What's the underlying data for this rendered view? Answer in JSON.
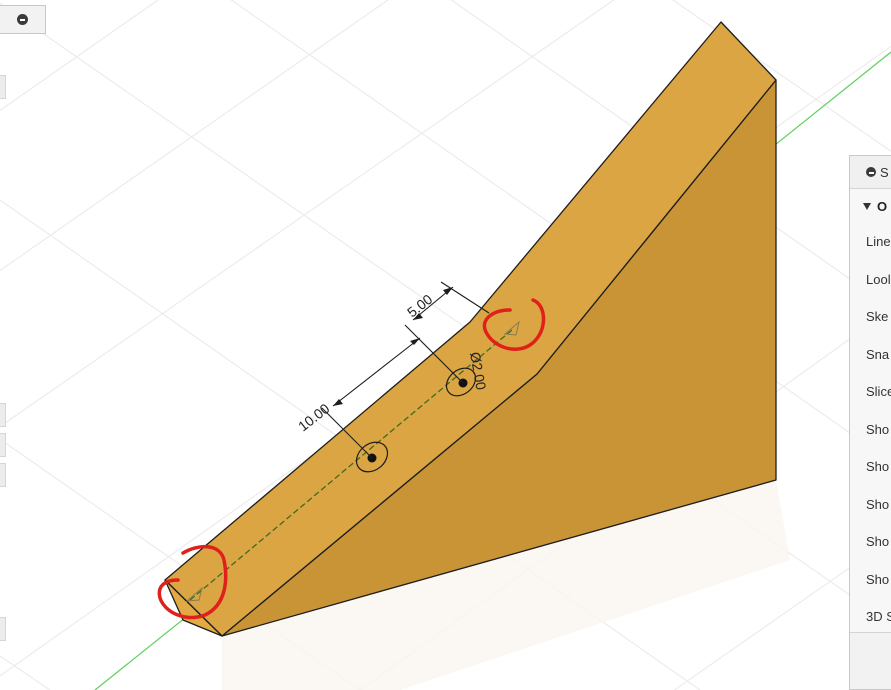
{
  "viewport": {
    "dimension_labels": {
      "distance_a": "10.00",
      "distance_b": "5.00",
      "diameter": "Ø2.00"
    },
    "colors": {
      "body_top": "#daa542",
      "body_side": "#c99436",
      "body_end": "#e1aa44",
      "axis_line": "#5ed05e",
      "markup": "#e0201a"
    }
  },
  "settings_panel": {
    "title": "S",
    "section_title": "O",
    "options": [
      "Line",
      "Lool",
      "Ske",
      "Sna",
      "Slice",
      "Sho",
      "Sho",
      "Sho",
      "Sho",
      "Sho",
      "3D S"
    ]
  }
}
